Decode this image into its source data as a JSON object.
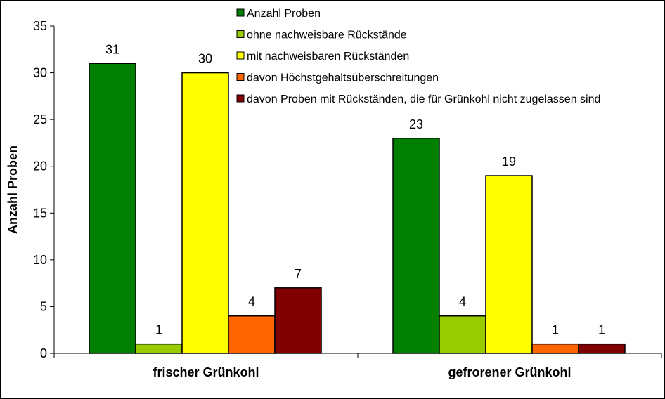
{
  "chart_data": {
    "type": "bar",
    "title": "",
    "xlabel": "",
    "ylabel": "Anzahl Proben",
    "ylim": [
      0,
      35
    ],
    "yticks": [
      0,
      5,
      10,
      15,
      20,
      25,
      30,
      35
    ],
    "categories": [
      "frischer Grünkohl",
      "gefrorener Grünkohl"
    ],
    "legend_position": "top-right",
    "grid": false,
    "series": [
      {
        "name": "Anzahl Proben",
        "color": "#008000",
        "values": [
          31,
          23
        ]
      },
      {
        "name": "ohne nachweisbare Rückstände",
        "color": "#99CC00",
        "values": [
          1,
          4
        ]
      },
      {
        "name": "mit nachweisbaren Rückständen",
        "color": "#FFFF00",
        "values": [
          30,
          19
        ]
      },
      {
        "name": "davon Höchstgehaltsüberschreitungen",
        "color": "#FF6600",
        "values": [
          4,
          1
        ]
      },
      {
        "name": "davon Proben mit Rückständen, die für Grünkohl nicht zugelassen sind",
        "color": "#800000",
        "values": [
          7,
          1
        ]
      }
    ]
  }
}
